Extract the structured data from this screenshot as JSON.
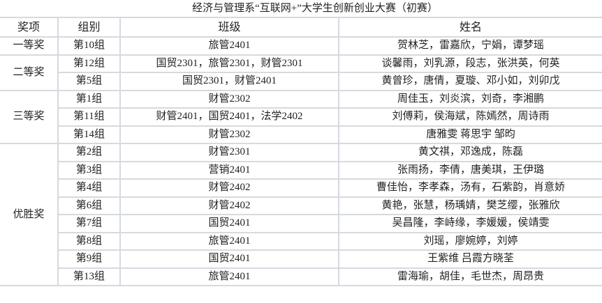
{
  "title": "经济与管理系“互联网+”大学生创新创业大赛（初赛）",
  "headers": [
    "奖项",
    "组别",
    "班级",
    "姓名"
  ],
  "awards": [
    "一等奖",
    "二等奖",
    "三等奖",
    "优胜奖"
  ],
  "rows": [
    {
      "group": "第10组",
      "class": "旅管2401",
      "names": "贺林芝，雷嘉欣，宁娟，谭梦瑶"
    },
    {
      "group": "第12组",
      "class": "国贸2301，旅管2301，财管2301",
      "names": "谈馨雨，刘乳源，段志，张洪英，何英"
    },
    {
      "group": "第5组",
      "class": "国贸2301，财管2401",
      "names": "黄曾珍，唐倩，夏璇、邓小如，刘卯戊"
    },
    {
      "group": "第1组",
      "class": "财管2302",
      "names": "周佳玉，刘炎滨，刘奇，李湘鹏"
    },
    {
      "group": "第11组",
      "class": "财管2401，国贸2401，法学2402",
      "names": "刘傅莉，侯海斌，陈嫣然，周诗雨"
    },
    {
      "group": "第14组",
      "class": "财管2302",
      "names": "唐雅雯 蒋思宇 邹昀"
    },
    {
      "group": "第2组",
      "class": "财管2301",
      "names": "黄文祺，邓逸成，陈磊"
    },
    {
      "group": "第3组",
      "class": "营销2401",
      "names": "张雨扬，李倩，唐美琪，王伊璐"
    },
    {
      "group": "第4组",
      "class": "财管2402",
      "names": "曹佳怡，李孝森，汤有，石紫韵，肖意娇"
    },
    {
      "group": "第6组",
      "class": "财管2402",
      "names": "黄艳，张慧，杨瑀婧，樊芝缨，张雅欣"
    },
    {
      "group": "第7组",
      "class": "国贸2401",
      "names": "吴昌隆，李峙缘，李媛媛，侯靖雯"
    },
    {
      "group": "第8组",
      "class": "旅管2401",
      "names": "刘瑶，廖婉婷，刘婷"
    },
    {
      "group": "第9组",
      "class": "国贸2401",
      "names": "王紫维 吕霞方晓荃"
    },
    {
      "group": "第13组",
      "class": "旅管2401",
      "names": "雷海瑜，胡佳，毛世杰，周昂贵"
    }
  ]
}
